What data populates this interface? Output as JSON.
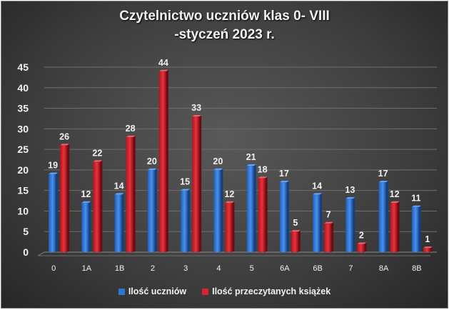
{
  "chart_data": {
    "type": "bar",
    "title": [
      "Czytelnictwo  uczniów  klas 0- VIII",
      "-styczeń  2023 r."
    ],
    "xlabel": "",
    "ylabel": "",
    "ylim": [
      0,
      45
    ],
    "yticks": [
      0,
      5,
      10,
      15,
      20,
      25,
      30,
      35,
      40,
      45
    ],
    "grid": true,
    "legend_position": "bottom",
    "categories": [
      "0",
      "1A",
      "1B",
      "2",
      "3",
      "4",
      "5",
      "6A",
      "6B",
      "7",
      "8A",
      "8B"
    ],
    "series": [
      {
        "name": "Ilość uczniów",
        "color": "#2e75d6",
        "values": [
          19,
          12,
          14,
          20,
          15,
          20,
          21,
          17,
          14,
          13,
          17,
          11
        ]
      },
      {
        "name": "Ilość przeczytanych książek",
        "color": "#d9232e",
        "values": [
          26,
          22,
          28,
          44,
          33,
          12,
          18,
          5,
          7,
          2,
          12,
          1
        ]
      }
    ]
  }
}
